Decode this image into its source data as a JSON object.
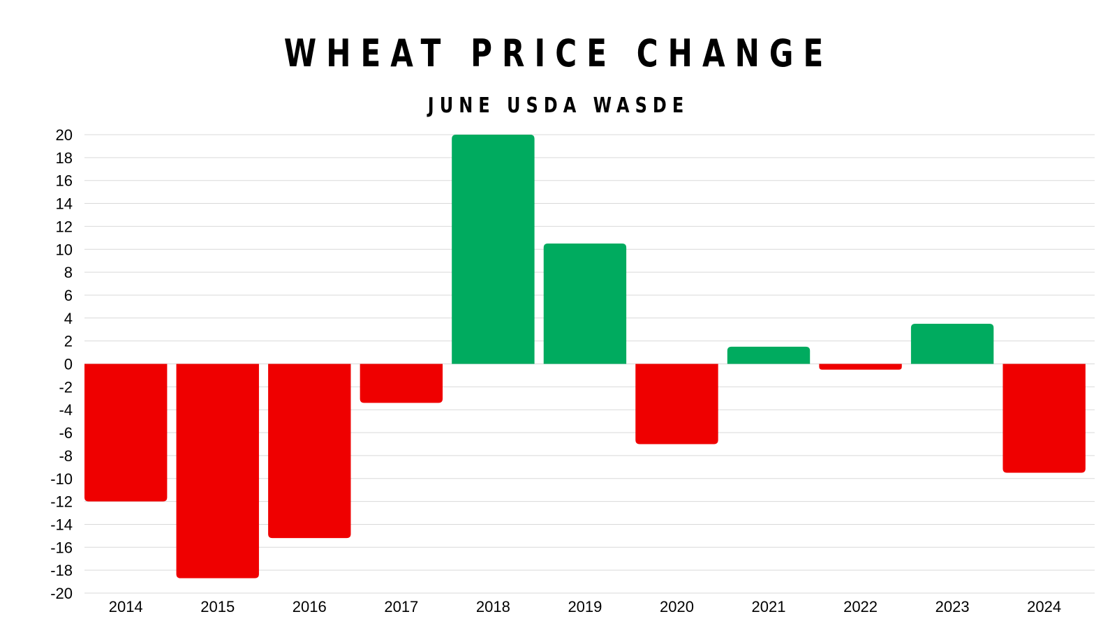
{
  "chart_data": {
    "type": "bar",
    "title": "WHEAT PRICE CHANGE",
    "subtitle": "JUNE USDA WASDE",
    "xlabel": "",
    "ylabel": "",
    "categories": [
      "2014",
      "2015",
      "2016",
      "2017",
      "2018",
      "2019",
      "2020",
      "2021",
      "2022",
      "2023",
      "2024"
    ],
    "values": [
      -12,
      -18.7,
      -15.2,
      -3.4,
      20,
      10.5,
      -7,
      1.5,
      -0.5,
      3.5,
      -9.5
    ],
    "ylim": [
      -20,
      20
    ],
    "yticks": [
      20,
      18,
      16,
      14,
      12,
      10,
      8,
      6,
      4,
      2,
      0,
      -2,
      -4,
      -6,
      -8,
      -10,
      -12,
      -14,
      -16,
      -18,
      -20
    ],
    "grid": true,
    "colors": {
      "positive": "#00ab5f",
      "negative": "#ef0000",
      "grid": "#d9d9d9"
    }
  }
}
